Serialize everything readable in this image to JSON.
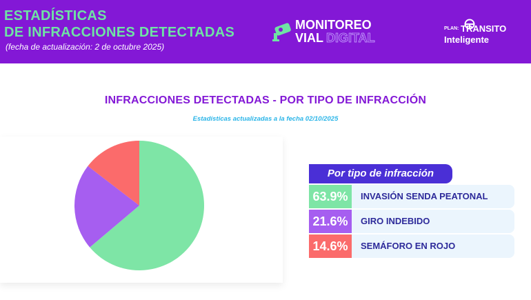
{
  "header": {
    "title_line1": "ESTADÍSTICAS",
    "title_line2": "DE INFRACCIONES DETECTADAS",
    "update_note": "(fecha de actualización: 2 de octubre 2025)",
    "logo_line1": "MONITOREO",
    "logo_line2a": "VIAL",
    "logo_line2b": "DIGITAL",
    "plan_prefix": "PLAN:",
    "plan_name1": "TRANSITO",
    "plan_name2": "Inteligente"
  },
  "legend": {
    "header": "Por tipo de infracción"
  },
  "colors": {
    "header_bg": "#8318d6",
    "title_green": "#6fe3a4",
    "legend_header_bg": "#4a2fd6",
    "row_bg": "#ebf5fd"
  },
  "chart_data": {
    "type": "pie",
    "title": "INFRACCIONES DETECTADAS - POR TIPO DE INFRACCIÓN",
    "subtitle": "Estadísticas actualizadas a la fecha 02/10/2025",
    "labels": [
      "INVASIÓN SENDA PEATONAL",
      "GIRO INDEBIDO",
      "SEMÁFORO EN ROJO"
    ],
    "values": [
      63.9,
      21.6,
      14.6
    ],
    "value_labels": [
      "63.9%",
      "21.6%",
      "14.6%"
    ],
    "colors": [
      "#7ee5a6",
      "#a65ef0",
      "#fb6b6b"
    ],
    "legend_position": "right"
  }
}
